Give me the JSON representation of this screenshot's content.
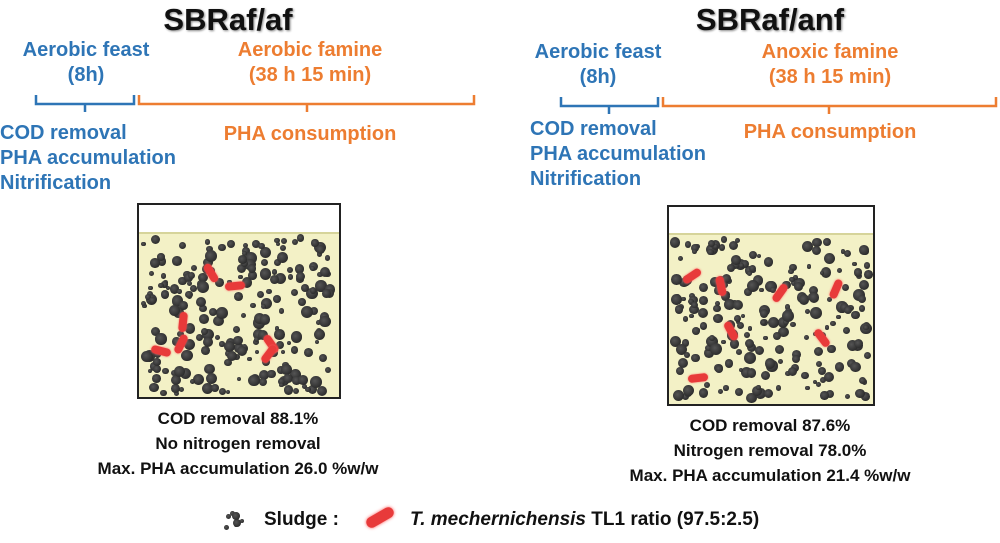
{
  "left": {
    "title": "SBRaf/af",
    "feast": {
      "label": "Aerobic feast",
      "duration": "(8h)"
    },
    "famine": {
      "label": "Aerobic famine",
      "duration": "(38 h 15 min)"
    },
    "feast_processes": [
      "COD removal",
      "PHA accumulation",
      "Nitrification"
    ],
    "famine_process": "PHA consumption",
    "results": [
      "COD removal 88.1%",
      "No nitrogen removal",
      "Max. PHA accumulation 26.0 %w/w"
    ]
  },
  "right": {
    "title": "SBRaf/anf",
    "feast": {
      "label": "Aerobic feast",
      "duration": "(8h)"
    },
    "famine": {
      "label": "Anoxic famine",
      "duration": "(38 h 15 min)"
    },
    "feast_processes": [
      "COD removal",
      "PHA accumulation",
      "Nitrification"
    ],
    "famine_process": "PHA consumption",
    "results": [
      "COD removal 87.6%",
      "Nitrogen removal 78.0%",
      "Max. PHA accumulation 21.4 %w/w"
    ]
  },
  "legend": {
    "sludge_label": "Sludge :",
    "bacteria_species": "T. mechernichensis",
    "bacteria_suffix": "TL1 ratio (97.5:2.5)"
  },
  "colors": {
    "feast": "#2e75b6",
    "famine": "#ed7d31",
    "bacteria": "#e83a3a",
    "liquid": "#f3f1c6"
  }
}
